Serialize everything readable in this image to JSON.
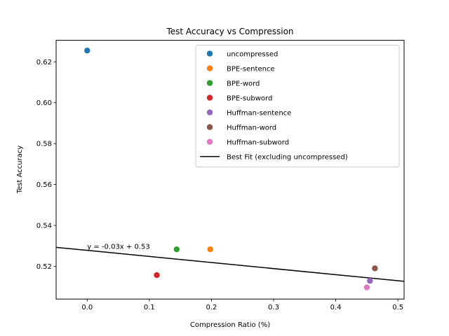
{
  "chart_data": {
    "type": "scatter",
    "title": "Test Accuracy vs Compression",
    "xlabel": "Compression Ratio (%)",
    "ylabel": "Test Accuracy",
    "xlim": [
      -0.05,
      0.51
    ],
    "ylim": [
      0.504,
      0.6305
    ],
    "xticks": [
      0.0,
      0.1,
      0.2,
      0.3,
      0.4,
      0.5
    ],
    "xtick_labels": [
      "0.0",
      "0.1",
      "0.2",
      "0.3",
      "0.4",
      "0.5"
    ],
    "yticks": [
      0.52,
      0.54,
      0.56,
      0.58,
      0.6,
      0.62
    ],
    "ytick_labels": [
      "0.52",
      "0.54",
      "0.56",
      "0.58",
      "0.60",
      "0.62"
    ],
    "grid": false,
    "legend_position": "top-right",
    "series": [
      {
        "name": "uncompressed",
        "color": "#1f77b4",
        "x": [
          0.0
        ],
        "y": [
          0.6255
        ]
      },
      {
        "name": "BPE-sentence",
        "color": "#ff7f0e",
        "x": [
          0.198
        ],
        "y": [
          0.5283
        ]
      },
      {
        "name": "BPE-word",
        "color": "#2ca02c",
        "x": [
          0.144
        ],
        "y": [
          0.5283
        ]
      },
      {
        "name": "BPE-subword",
        "color": "#d62728",
        "x": [
          0.112
        ],
        "y": [
          0.5157
        ]
      },
      {
        "name": "Huffman-sentence",
        "color": "#9467bd",
        "x": [
          0.455
        ],
        "y": [
          0.5129
        ]
      },
      {
        "name": "Huffman-word",
        "color": "#8c564b",
        "x": [
          0.463
        ],
        "y": [
          0.519
        ]
      },
      {
        "name": "Huffman-subword",
        "color": "#e377c2",
        "x": [
          0.45
        ],
        "y": [
          0.5097
        ]
      }
    ],
    "fit_line": {
      "name": "Best Fit (excluding uncompressed)",
      "color": "#000000",
      "slope": -0.0297,
      "intercept": 0.5278
    },
    "annotations": [
      {
        "text": "y = -0.03x + 0.53",
        "x": 0.0,
        "y": 0.5283
      }
    ]
  }
}
